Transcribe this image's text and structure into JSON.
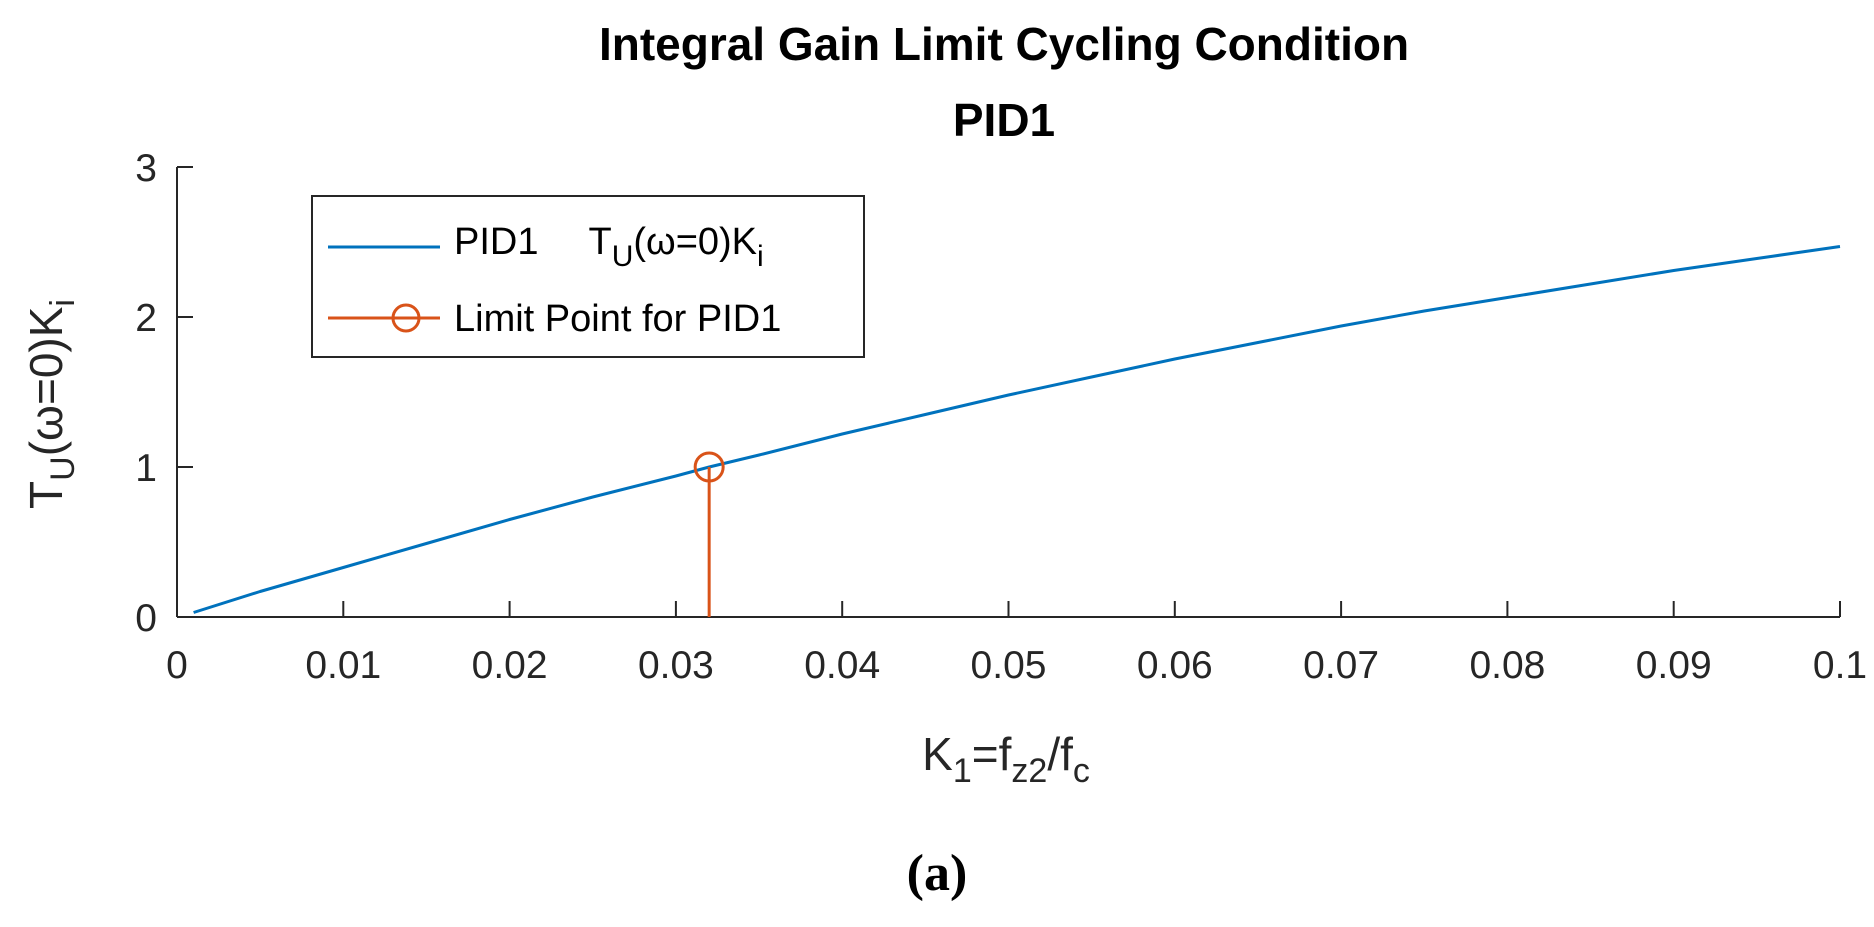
{
  "chart_data": {
    "type": "line",
    "title": "Integral Gain Limit Cycling Condition",
    "subtitle": "PID1",
    "xlabel": {
      "base": "K",
      "sub1": "1",
      "mid": "=f",
      "sub2": "z2",
      "slash": "/f",
      "sub3": "c"
    },
    "ylabel": {
      "base": "T",
      "sub": "U",
      "rest": "(ω=0)K",
      "sub2": "i"
    },
    "xlim": [
      0,
      0.1
    ],
    "ylim": [
      0,
      3
    ],
    "xticks": [
      0,
      0.01,
      0.02,
      0.03,
      0.04,
      0.05,
      0.06,
      0.07,
      0.08,
      0.09,
      0.1
    ],
    "xtick_labels": [
      "0",
      "0.01",
      "0.02",
      "0.03",
      "0.04",
      "0.05",
      "0.06",
      "0.07",
      "0.08",
      "0.09",
      "0.1"
    ],
    "yticks": [
      0,
      1,
      2,
      3
    ],
    "ytick_labels": [
      "0",
      "1",
      "2",
      "3"
    ],
    "series": [
      {
        "name": "PID1",
        "legend": {
          "prefix": "PID1",
          "base": "T",
          "sub": "U",
          "rest": "(ω=0)K",
          "sub2": "i"
        },
        "color": "#0072BD",
        "x": [
          0.001,
          0.005,
          0.01,
          0.015,
          0.02,
          0.025,
          0.03,
          0.032,
          0.035,
          0.04,
          0.045,
          0.05,
          0.055,
          0.06,
          0.065,
          0.07,
          0.075,
          0.08,
          0.085,
          0.09,
          0.095,
          0.1
        ],
        "y": [
          0.03,
          0.17,
          0.33,
          0.49,
          0.65,
          0.8,
          0.94,
          1.0,
          1.08,
          1.22,
          1.35,
          1.48,
          1.6,
          1.72,
          1.83,
          1.94,
          2.04,
          2.13,
          2.22,
          2.31,
          2.39,
          2.47
        ]
      },
      {
        "name": "Limit Point for PID1",
        "type": "stem",
        "color": "#D95319",
        "x": [
          0.032
        ],
        "y": [
          1.0
        ]
      }
    ],
    "legend_position": "top-left",
    "caption": "(a)"
  }
}
